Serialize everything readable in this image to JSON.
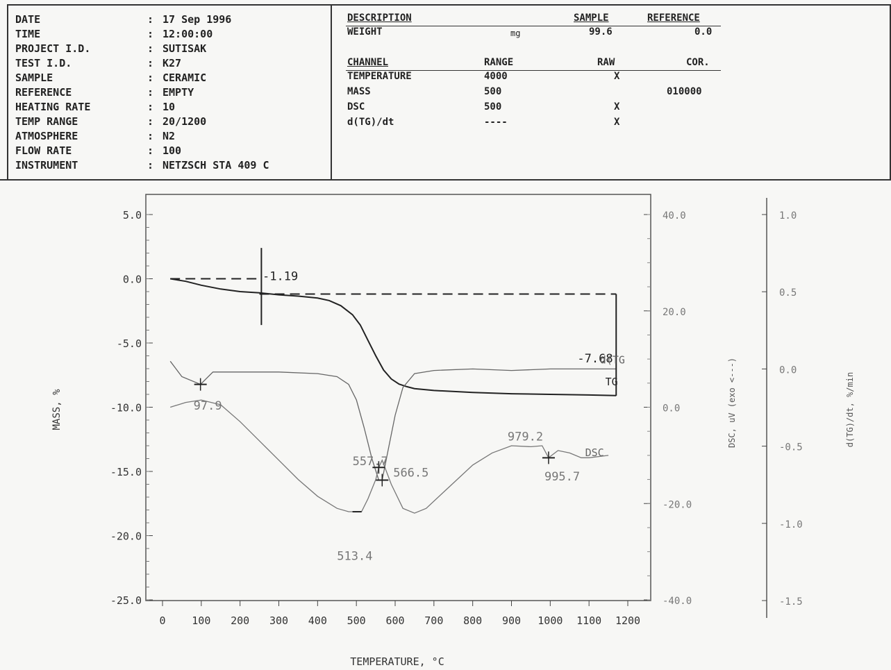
{
  "header": {
    "fields": [
      {
        "key": "DATE",
        "value": "17 Sep 1996"
      },
      {
        "key": "TIME",
        "value": "12:00:00"
      },
      {
        "key": "PROJECT I.D.",
        "value": "SUTISAK"
      },
      {
        "key": "TEST I.D.",
        "value": "K27"
      },
      {
        "key": "SAMPLE",
        "value": "CERAMIC"
      },
      {
        "key": "REFERENCE",
        "value": "EMPTY"
      },
      {
        "key": "HEATING RATE",
        "value": "10"
      },
      {
        "key": "TEMP RANGE",
        "value": "20/1200"
      },
      {
        "key": "ATMOSPHERE",
        "value": "N2"
      },
      {
        "key": "FLOW RATE",
        "value": "100"
      },
      {
        "key": "INSTRUMENT",
        "value": "NETZSCH STA 409 C"
      }
    ],
    "description": {
      "label": "DESCRIPTION",
      "sample_col": "SAMPLE",
      "reference_col": "REFERENCE",
      "weight_label": "WEIGHT",
      "weight_unit": "mg",
      "weight_sample": "99.6",
      "weight_reference": "0.0"
    },
    "channels": {
      "headers": [
        "CHANNEL",
        "RANGE",
        "RAW",
        "COR."
      ],
      "rows": [
        {
          "name": "TEMPERATURE",
          "range": "4000",
          "raw": "X",
          "cor": ""
        },
        {
          "name": "MASS",
          "range": "500",
          "raw": "",
          "cor": "010000"
        },
        {
          "name": "DSC",
          "range": "500",
          "raw": "X",
          "cor": ""
        },
        {
          "name": "d(TG)/dt",
          "range": "----",
          "raw": "X",
          "cor": ""
        }
      ]
    }
  },
  "chart_data": {
    "type": "line",
    "xlabel": "TEMPERATURE, °C",
    "ylabel": "MASS, %",
    "y2label": "DSC, uV (exo <---)",
    "y3label": "d(TG)/dt, %/min",
    "xlim": [
      0,
      1200
    ],
    "ylim": [
      -25,
      5
    ],
    "y2lim": [
      -40,
      40
    ],
    "y3lim": [
      -1.5,
      1.0
    ],
    "xticks": [
      "0",
      "100",
      "200",
      "300",
      "400",
      "500",
      "600",
      "700",
      "800",
      "900",
      "1000",
      "1100",
      "1200"
    ],
    "yticks": [
      "5.0",
      "0.0",
      "-5.0",
      "-10.0",
      "-15.0",
      "-20.0",
      "-25.0"
    ],
    "y2ticks": [
      "40.0",
      "20.0",
      "0.0",
      "-20.0",
      "-40.0"
    ],
    "y3ticks": [
      "1.0",
      "0.5",
      "0.0",
      "-0.5",
      "-1.0",
      "-1.5"
    ],
    "series": [
      {
        "name": "TG",
        "axis": "y",
        "x": [
          20,
          60,
          100,
          150,
          200,
          250,
          300,
          350,
          400,
          430,
          460,
          490,
          510,
          530,
          550,
          570,
          590,
          610,
          630,
          650,
          700,
          800,
          900,
          1000,
          1100,
          1170
        ],
        "y": [
          0.0,
          -0.2,
          -0.5,
          -0.8,
          -1.0,
          -1.1,
          -1.25,
          -1.35,
          -1.5,
          -1.7,
          -2.1,
          -2.8,
          -3.6,
          -4.8,
          -6.0,
          -7.1,
          -7.8,
          -8.2,
          -8.4,
          -8.55,
          -8.7,
          -8.85,
          -8.95,
          -9.0,
          -9.05,
          -9.1
        ]
      },
      {
        "name": "d(TG",
        "axis": "y3",
        "x": [
          20,
          50,
          97.9,
          130,
          200,
          300,
          400,
          450,
          480,
          500,
          520,
          540,
          557.7,
          566.5,
          580,
          600,
          620,
          650,
          700,
          800,
          900,
          1000,
          1100,
          1170
        ],
        "y": [
          0.05,
          -0.05,
          -0.1,
          -0.02,
          -0.02,
          -0.02,
          -0.03,
          -0.05,
          -0.1,
          -0.2,
          -0.38,
          -0.58,
          -0.72,
          -0.72,
          -0.55,
          -0.3,
          -0.12,
          -0.03,
          -0.01,
          0.0,
          -0.01,
          0.0,
          0.0,
          0.0
        ]
      },
      {
        "name": "DSC",
        "axis": "y2",
        "x": [
          20,
          60,
          100,
          150,
          200,
          250,
          300,
          350,
          400,
          450,
          480,
          513.4,
          530,
          550,
          557.7,
          566.5,
          590,
          620,
          650,
          680,
          720,
          760,
          800,
          850,
          900,
          950,
          979.2,
          995.7,
          1020,
          1050,
          1080,
          1100,
          1150
        ],
        "y": [
          0.0,
          1.0,
          1.5,
          0.5,
          -3.0,
          -7.0,
          -11.0,
          -15.0,
          -18.5,
          -21.0,
          -21.7,
          -21.7,
          -19.0,
          -15.0,
          -12.5,
          -11.0,
          -16.0,
          -21.0,
          -22.0,
          -21.0,
          -18.0,
          -15.0,
          -12.0,
          -9.5,
          -8.0,
          -8.2,
          -8.0,
          -10.5,
          -9.0,
          -9.5,
          -10.5,
          -10.5,
          -10.0
        ]
      }
    ],
    "annotations": [
      "-1.19",
      "-7.68",
      "97.9",
      "557.7",
      "566.5",
      "513.4",
      "979.2",
      "995.7"
    ]
  }
}
